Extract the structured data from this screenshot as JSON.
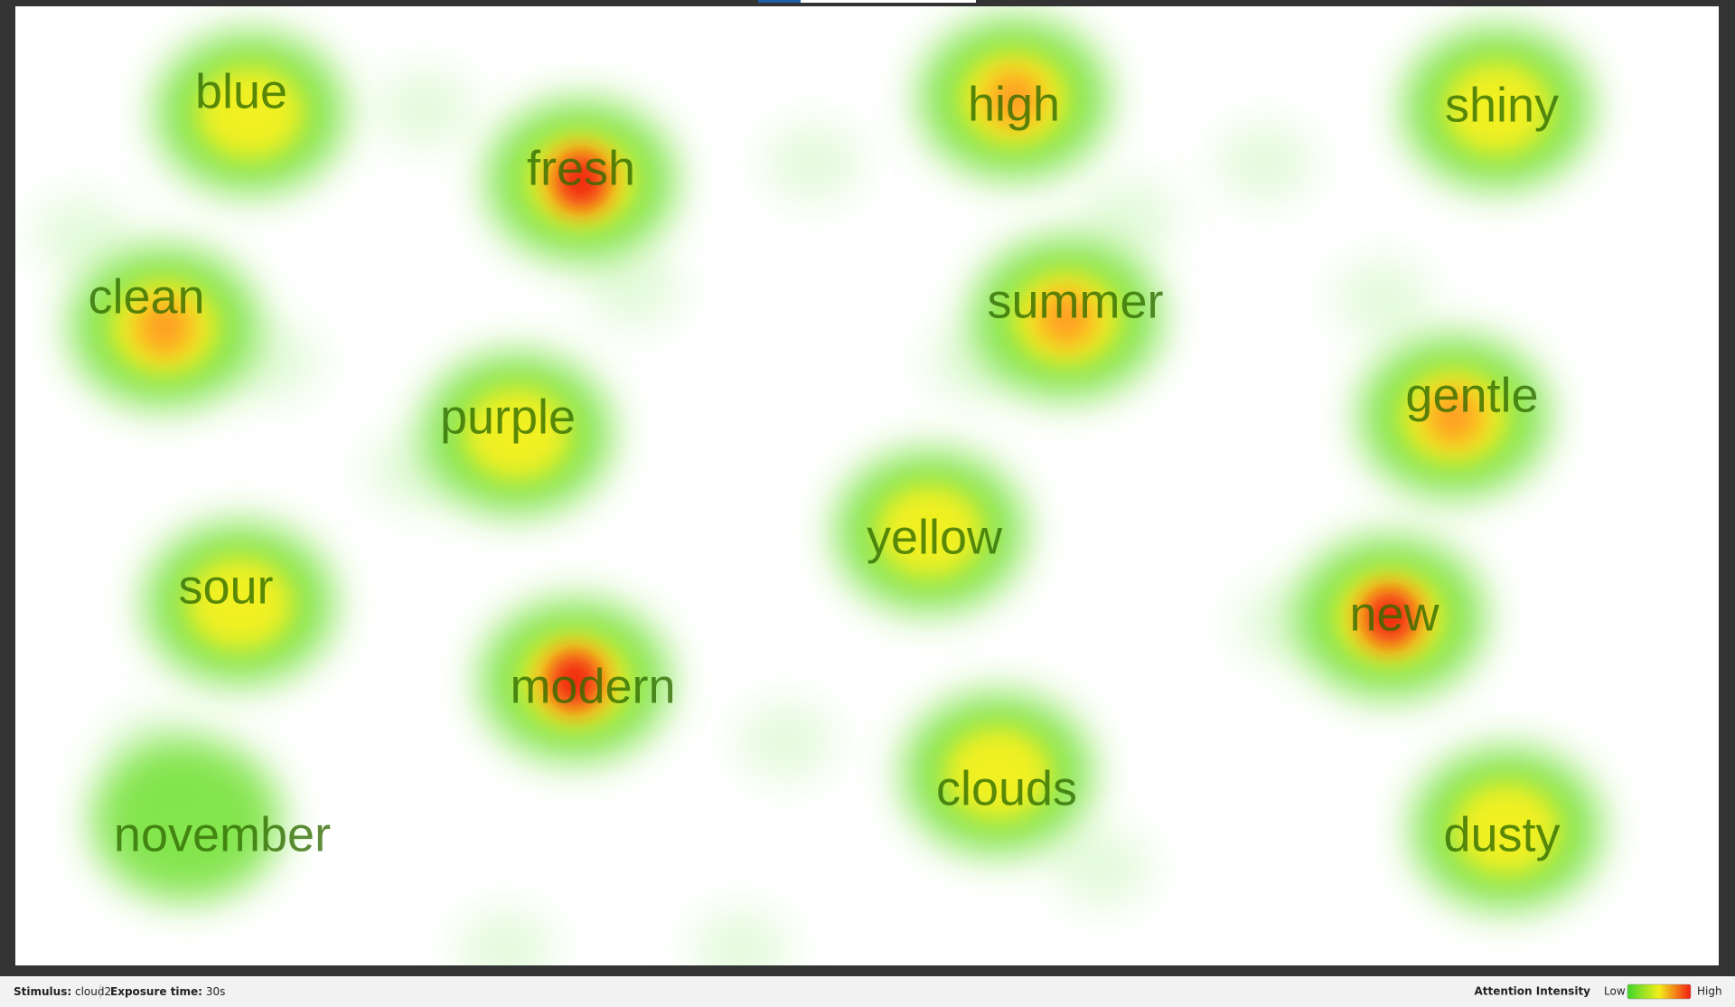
{
  "words": [
    "blue",
    "fresh",
    "high",
    "shiny",
    "clean",
    "summer",
    "gentle",
    "purple",
    "yellow",
    "sour",
    "new",
    "modern",
    "clouds",
    "november",
    "dusty"
  ],
  "footer": {
    "stimulus_label": "Stimulus:",
    "stimulus": "cloud2",
    "exposure_label": "Exposure time:",
    "exposure": "30s",
    "legend_title": "Attention Intensity",
    "legend_low": "Low",
    "legend_high": "High"
  }
}
